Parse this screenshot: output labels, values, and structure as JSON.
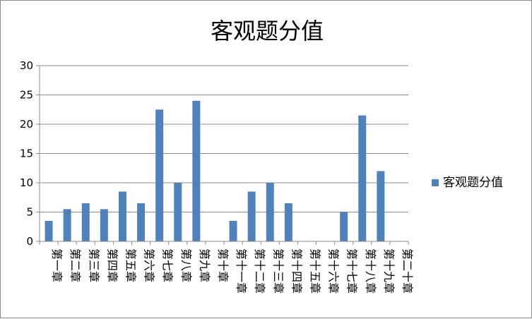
{
  "chart_data": {
    "type": "bar",
    "title": "客观题分值",
    "categories": [
      "第一章",
      "第二章",
      "第三章",
      "第四章",
      "第五章",
      "第六章",
      "第七章",
      "第八章",
      "第九章",
      "第十章",
      "第十一章",
      "第十二章",
      "第十三章",
      "第十四章",
      "第十五章",
      "第十六章",
      "第十七章",
      "第十八章",
      "第十九章",
      "第二十章"
    ],
    "series": [
      {
        "name": "客观题分值",
        "values": [
          3.5,
          5.5,
          6.5,
          5.5,
          8.5,
          6.5,
          22.5,
          10,
          24,
          0,
          3.5,
          8.5,
          10,
          6.5,
          0,
          0,
          5,
          21.5,
          12,
          0
        ]
      }
    ],
    "ylim": [
      0,
      30
    ],
    "yticks": [
      0,
      5,
      10,
      15,
      20,
      25,
      30
    ],
    "grid": true,
    "legend_position": "right",
    "colors": {
      "bar": "#4f81bd",
      "grid": "#8c8c8c",
      "axis": "#8c8c8c"
    }
  }
}
